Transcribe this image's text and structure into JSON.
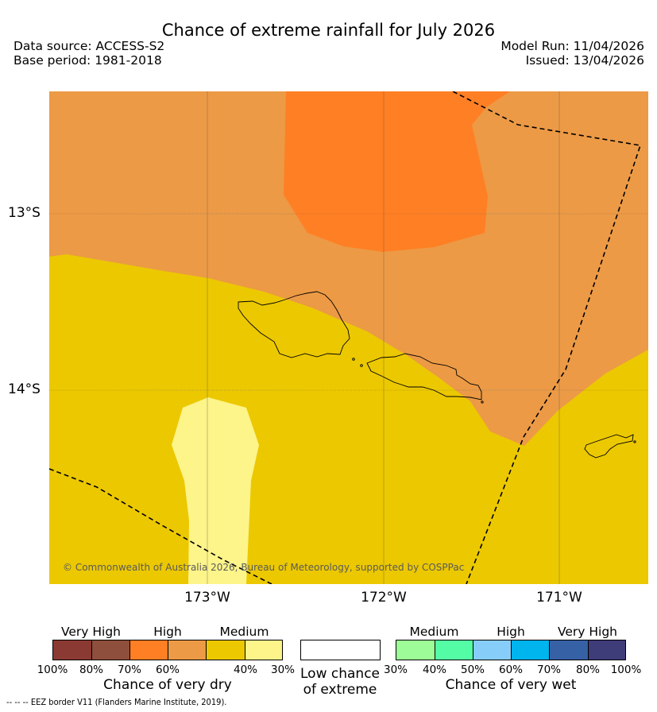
{
  "header": {
    "title": "Chance of extreme rainfall for July 2026",
    "data_source": "Data source: ACCESS-S2",
    "base_period": "Base period: 1981-2018",
    "model_run": "Model Run: 11/04/2026",
    "issued": "Issued: 13/04/2026"
  },
  "map": {
    "lat_labels": [
      "13°S",
      "14°S"
    ],
    "lon_labels": [
      "173°W",
      "172°W",
      "171°W"
    ],
    "credit": "© Commonwealth of Australia 2026, Bureau of Meteorology, supported by COSPPac",
    "colors": {
      "very_dry_high": "#ff7f24",
      "very_dry_60_70": "#ec9a46",
      "very_dry_40_60": "#ecc800",
      "very_dry_30_40": "#fdf48a"
    }
  },
  "legend": {
    "dry": {
      "categories": [
        "Very High",
        "High",
        "Medium"
      ],
      "colors": [
        "#8b3a33",
        "#8e4f3c",
        "#ff7f24",
        "#ec9a46",
        "#ecc800",
        "#fdf48a"
      ],
      "ticks": [
        "100%",
        "80%",
        "70%",
        "60%",
        "40%",
        "30%"
      ],
      "caption": "Chance of very dry"
    },
    "low": {
      "color": "#ffffff",
      "caption_line1": "Low chance",
      "caption_line2": "of extreme"
    },
    "wet": {
      "categories": [
        "Medium",
        "High",
        "Very High"
      ],
      "colors": [
        "#9dfc97",
        "#55fca6",
        "#87cdfa",
        "#00b4ee",
        "#3661a5",
        "#3f3c7a"
      ],
      "ticks": [
        "30%",
        "40%",
        "50%",
        "60%",
        "70%",
        "80%",
        "100%"
      ],
      "caption": "Chance of very wet"
    }
  },
  "footer": {
    "eez_note": "-- -- -- EEZ border V11 (Flanders Marine Institute, 2019)."
  }
}
